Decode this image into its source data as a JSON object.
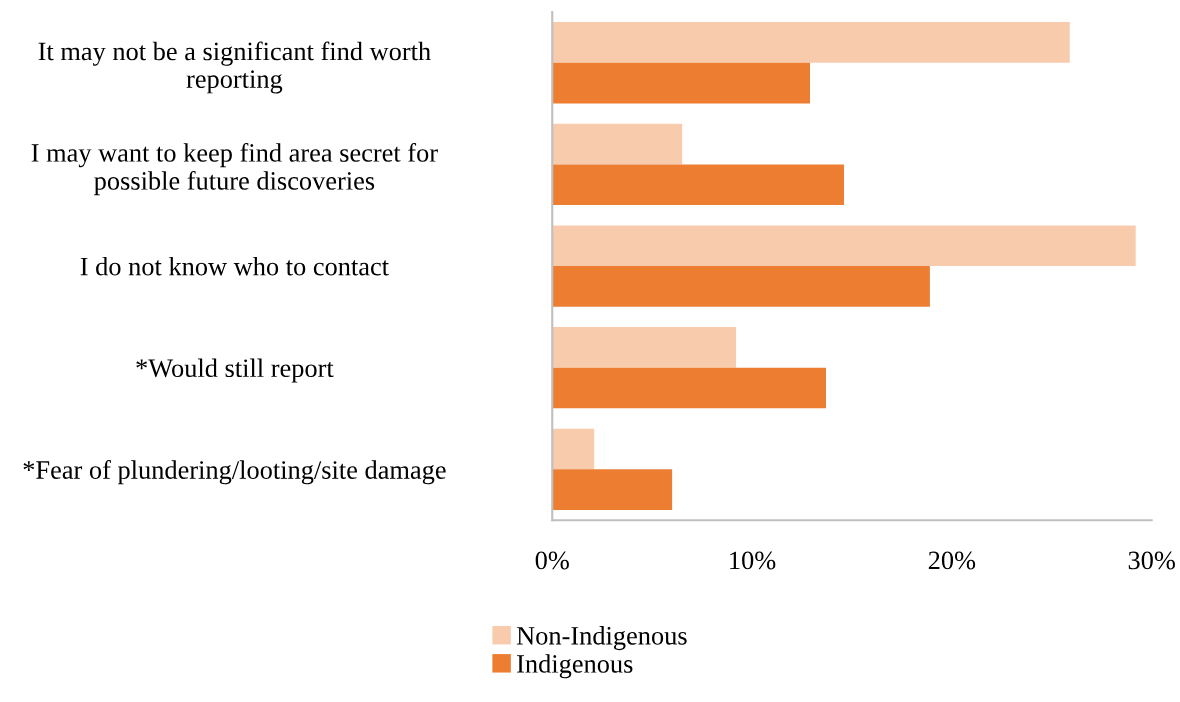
{
  "chart_data": {
    "type": "bar",
    "orientation": "horizontal",
    "categories": [
      "It may not be a significant find worth reporting",
      "I may want to keep find area secret for possible future discoveries",
      "I do not know who to contact",
      "*Would still report",
      "*Fear of plundering/looting/site damage"
    ],
    "series": [
      {
        "name": "Non-Indigenous",
        "color": "#f8cbad",
        "values": [
          25.9,
          6.5,
          29.2,
          9.2,
          2.1
        ]
      },
      {
        "name": "Indigenous",
        "color": "#ed7d31",
        "values": [
          12.9,
          14.6,
          18.9,
          13.7,
          6.0
        ]
      }
    ],
    "xlim": [
      0,
      30
    ],
    "xticks": [
      {
        "value": 0,
        "label": "0%"
      },
      {
        "value": 10,
        "label": "10%"
      },
      {
        "value": 20,
        "label": "20%"
      },
      {
        "value": 30,
        "label": "30%"
      }
    ],
    "grid": false,
    "legend": "bottom"
  }
}
